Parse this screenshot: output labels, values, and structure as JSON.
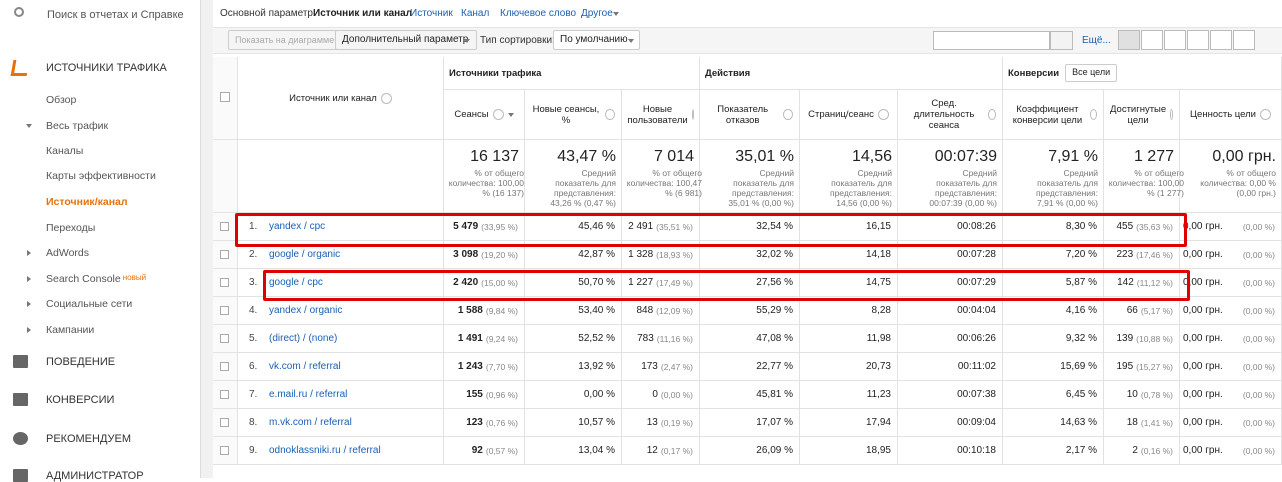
{
  "sidebar": {
    "search": "Поиск в отчетах и Справке",
    "section": "ИСТОЧНИКИ ТРАФИКА",
    "items": [
      "Обзор",
      "Весь трафик",
      "Каналы",
      "Карты эффективности",
      "Источник/канал",
      "Переходы",
      "AdWords",
      "Search Console",
      "Социальные сети",
      "Кампании"
    ],
    "badge": "новый",
    "sections": [
      "ПОВЕДЕНИЕ",
      "КОНВЕРСИИ",
      "РЕКОМЕНДУЕМ",
      "АДМИНИСТРАТОР"
    ]
  },
  "dimension_bar": {
    "label": "Основной параметр:",
    "options": [
      "Источник или канал",
      "Источник",
      "Канал",
      "Ключевое слово",
      "Другое"
    ]
  },
  "toolbar": {
    "chart_button": "Показать на диаграмме",
    "secondary": "Дополнительный параметр",
    "sort_label": "Тип сортировки:",
    "sort_value": "По умолчанию",
    "more": "Ещё..."
  },
  "table": {
    "groups": [
      "Источники трафика",
      "Действия",
      "Конверсии"
    ],
    "goal_select": "Все цели",
    "columns": [
      "Источник или канал",
      "Сеансы",
      "Новые сеансы, %",
      "Новые пользователи",
      "Показатель отказов",
      "Страниц/сеанс",
      "Сред. длительность сеанса",
      "Коэффициент конверсии цели",
      "Достигнутые цели",
      "Ценность цели"
    ],
    "totals": [
      {
        "value": "16 137",
        "note": "% от общего количества: 100,00 % (16 137)"
      },
      {
        "value": "43,47 %",
        "note": "Средний показатель для представления: 43,26 % (0,47 %)"
      },
      {
        "value": "7 014",
        "note": "% от общего количества: 100,47 % (6 981)"
      },
      {
        "value": "35,01 %",
        "note": "Средний показатель для представления: 35,01 % (0,00 %)"
      },
      {
        "value": "14,56",
        "note": "Средний показатель для представления: 14,56 (0,00 %)"
      },
      {
        "value": "00:07:39",
        "note": "Средний показатель для представления: 00:07:39 (0,00 %)"
      },
      {
        "value": "7,91 %",
        "note": "Средний показатель для представления: 7,91 % (0,00 %)"
      },
      {
        "value": "1 277",
        "note": "% от общего количества: 100,00 % (1 277)"
      },
      {
        "value": "0,00 грн.",
        "note": "% от общего количества: 0,00 % (0,00 грн.)"
      }
    ],
    "rows": [
      [
        "1.",
        "yandex / cpc",
        "5 479",
        "(33,95 %)",
        "45,46 %",
        "2 491",
        "(35,51 %)",
        "32,54 %",
        "16,15",
        "00:08:26",
        "8,30 %",
        "455",
        "(35,63 %)",
        "0,00 грн.",
        "(0,00 %)"
      ],
      [
        "2.",
        "google / organic",
        "3 098",
        "(19,20 %)",
        "42,87 %",
        "1 328",
        "(18,93 %)",
        "32,02 %",
        "14,18",
        "00:07:28",
        "7,20 %",
        "223",
        "(17,46 %)",
        "0,00 грн.",
        "(0,00 %)"
      ],
      [
        "3.",
        "google / cpc",
        "2 420",
        "(15,00 %)",
        "50,70 %",
        "1 227",
        "(17,49 %)",
        "27,56 %",
        "14,75",
        "00:07:29",
        "5,87 %",
        "142",
        "(11,12 %)",
        "0,00 грн.",
        "(0,00 %)"
      ],
      [
        "4.",
        "yandex / organic",
        "1 588",
        "(9,84 %)",
        "53,40 %",
        "848",
        "(12,09 %)",
        "55,29 %",
        "8,28",
        "00:04:04",
        "4,16 %",
        "66",
        "(5,17 %)",
        "0,00 грн.",
        "(0,00 %)"
      ],
      [
        "5.",
        "(direct) / (none)",
        "1 491",
        "(9,24 %)",
        "52,52 %",
        "783",
        "(11,16 %)",
        "47,08 %",
        "11,98",
        "00:06:26",
        "9,32 %",
        "139",
        "(10,88 %)",
        "0,00 грн.",
        "(0,00 %)"
      ],
      [
        "6.",
        "vk.com / referral",
        "1 243",
        "(7,70 %)",
        "13,92 %",
        "173",
        "(2,47 %)",
        "22,77 %",
        "20,73",
        "00:11:02",
        "15,69 %",
        "195",
        "(15,27 %)",
        "0,00 грн.",
        "(0,00 %)"
      ],
      [
        "7.",
        "e.mail.ru / referral",
        "155",
        "(0,96 %)",
        "0,00 %",
        "0",
        "(0,00 %)",
        "45,81 %",
        "11,23",
        "00:07:38",
        "6,45 %",
        "10",
        "(0,78 %)",
        "0,00 грн.",
        "(0,00 %)"
      ],
      [
        "8.",
        "m.vk.com / referral",
        "123",
        "(0,76 %)",
        "10,57 %",
        "13",
        "(0,19 %)",
        "17,07 %",
        "17,94",
        "00:09:04",
        "14,63 %",
        "18",
        "(1,41 %)",
        "0,00 грн.",
        "(0,00 %)"
      ],
      [
        "9.",
        "odnoklassniki.ru / referral",
        "92",
        "(0,57 %)",
        "13,04 %",
        "12",
        "(0,17 %)",
        "26,09 %",
        "18,95",
        "00:10:18",
        "2,17 %",
        "2",
        "(0,16 %)",
        "0,00 грн.",
        "(0,00 %)"
      ]
    ]
  }
}
